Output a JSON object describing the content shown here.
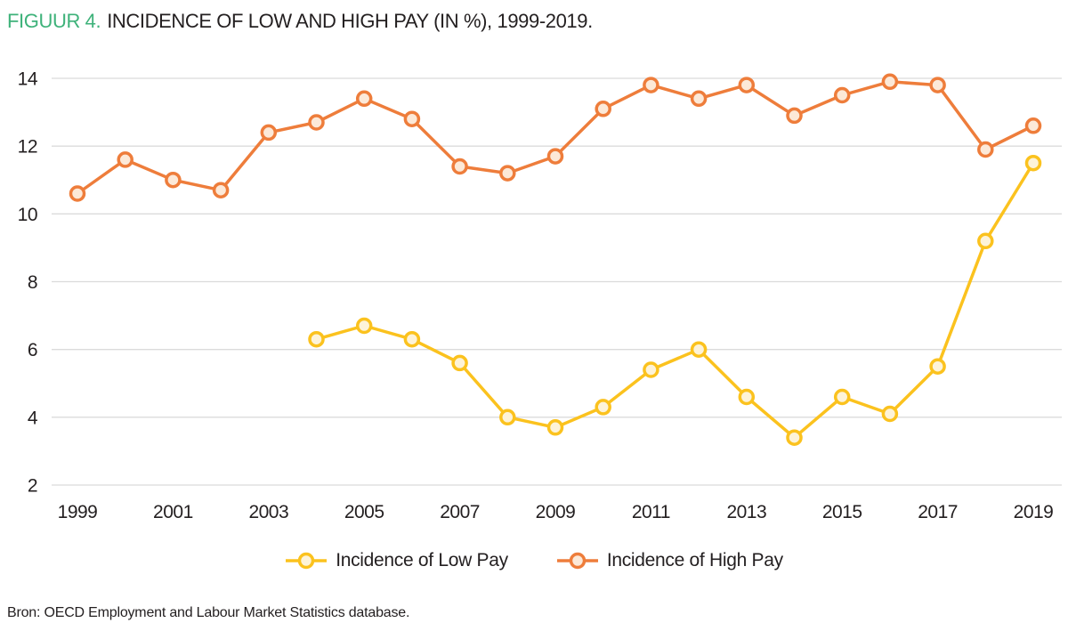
{
  "title": {
    "prefix": "FIGUUR 4.",
    "text": "INCIDENCE OF LOW AND HIGH PAY (IN %), 1999-2019."
  },
  "source": "Bron: OECD Employment and Labour Market Statistics database.",
  "colors": {
    "title_accent": "#3eb27a",
    "text": "#231f20",
    "gridline": "#dbdbdb",
    "low_pay_line": "#fbc21e",
    "low_pay_marker_fill": "#fdf3d8",
    "high_pay_line": "#ee7d3b",
    "high_pay_marker_fill": "#fce9d8"
  },
  "chart_data": {
    "type": "line",
    "title": "FIGUUR 4. INCIDENCE OF LOW AND HIGH PAY (IN %), 1999-2019.",
    "xlabel": "",
    "ylabel": "",
    "x": [
      1999,
      2000,
      2001,
      2002,
      2003,
      2004,
      2005,
      2006,
      2007,
      2008,
      2009,
      2010,
      2011,
      2012,
      2013,
      2014,
      2015,
      2016,
      2017,
      2018,
      2019
    ],
    "xticks": [
      1999,
      2001,
      2003,
      2005,
      2007,
      2009,
      2011,
      2013,
      2015,
      2017,
      2019
    ],
    "yticks": [
      2,
      4,
      6,
      8,
      10,
      12,
      14
    ],
    "ylim": [
      2,
      14
    ],
    "grid": "horizontal",
    "legend_position": "bottom",
    "series": [
      {
        "name": "Incidence of Low Pay",
        "color": "#fbc21e",
        "marker_fill": "#fdf3d8",
        "values": [
          null,
          null,
          null,
          null,
          null,
          6.3,
          6.7,
          6.3,
          5.6,
          4.0,
          3.7,
          4.3,
          5.4,
          6.0,
          4.6,
          3.4,
          4.6,
          4.1,
          5.5,
          9.2,
          11.5
        ]
      },
      {
        "name": "Incidence of High Pay",
        "color": "#ee7d3b",
        "marker_fill": "#fce9d8",
        "values": [
          10.6,
          11.6,
          11.0,
          10.7,
          12.4,
          12.7,
          13.4,
          12.8,
          11.4,
          11.2,
          11.7,
          13.1,
          13.8,
          13.4,
          13.8,
          12.9,
          13.5,
          13.9,
          13.8,
          11.9,
          12.6
        ]
      }
    ]
  }
}
